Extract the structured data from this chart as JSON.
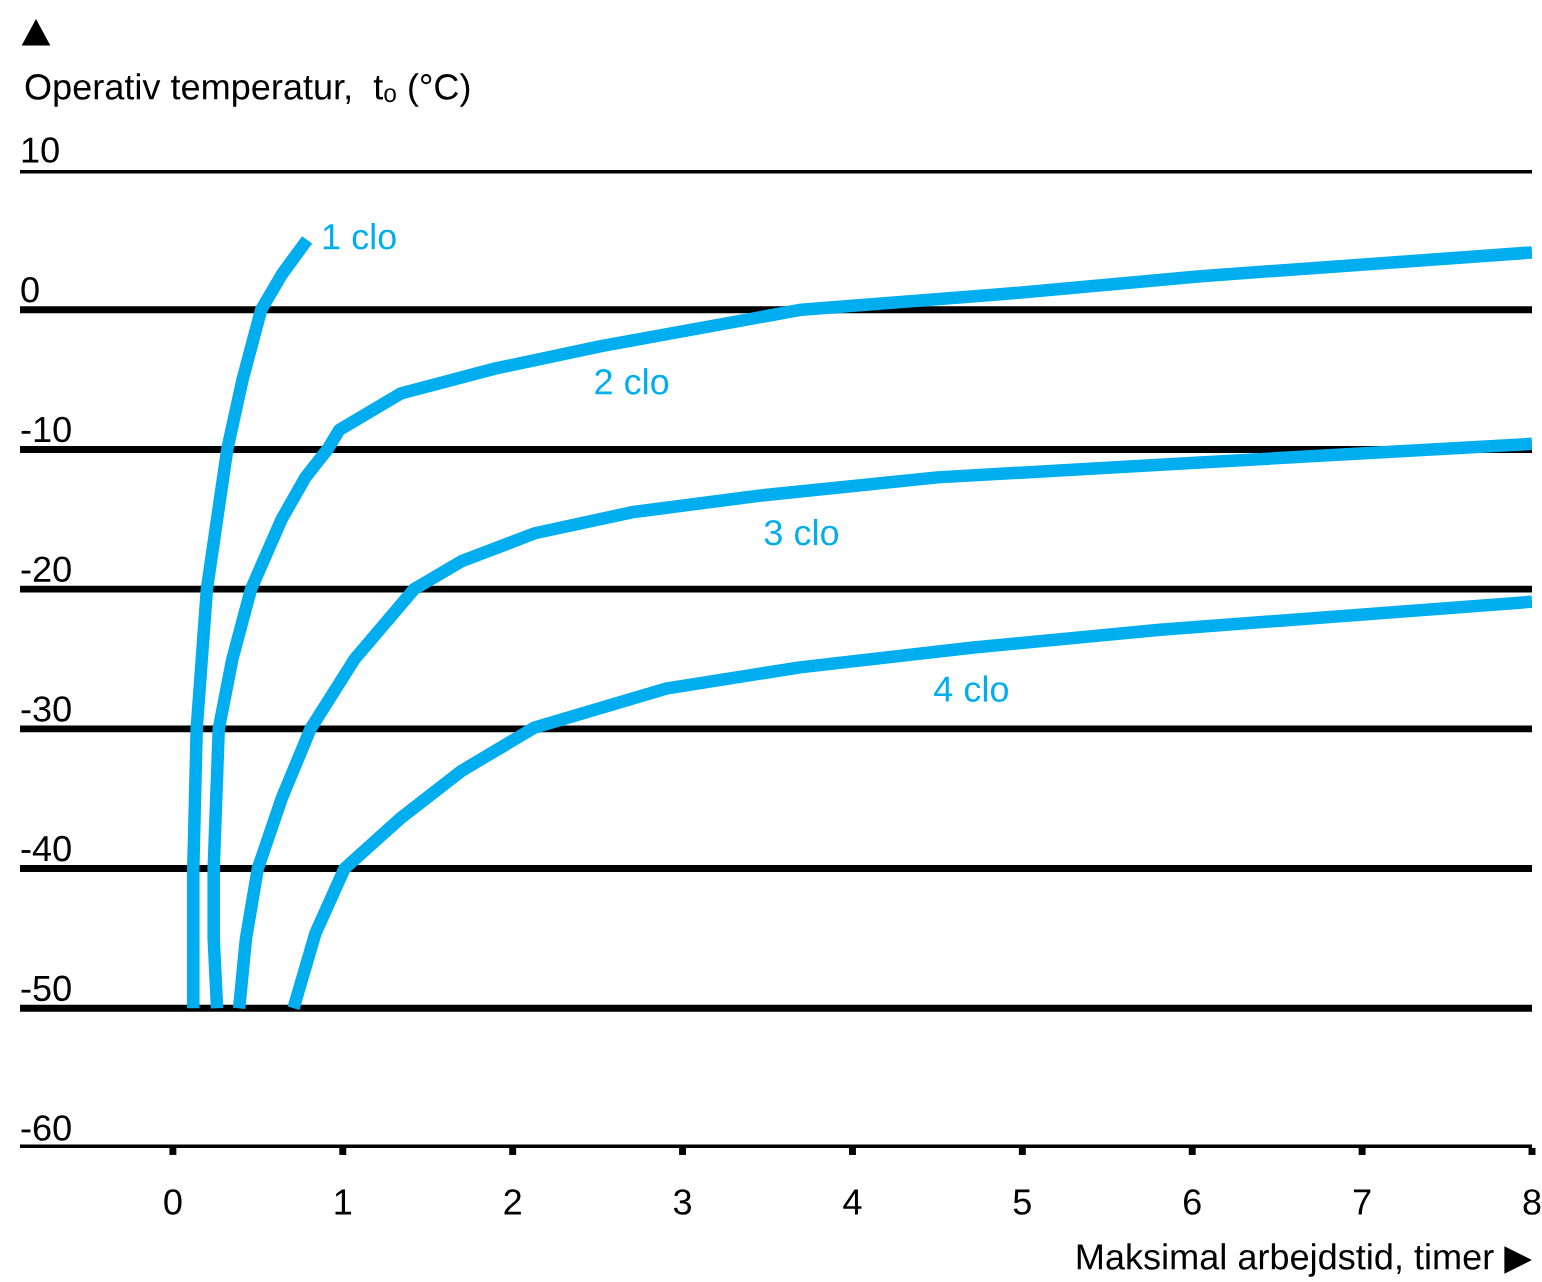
{
  "chart_data": {
    "type": "line",
    "xlabel": "Maksimal arbejdstid, timer ▶",
    "ylabel": "Operativ temperatur,  tₒ (°C)",
    "xlim": [
      -0.9,
      8
    ],
    "ylim": [
      -60,
      10
    ],
    "xticks": [
      0,
      1,
      2,
      3,
      4,
      5,
      6,
      7,
      8
    ],
    "yticks": [
      -60,
      -50,
      -40,
      -30,
      -20,
      -10,
      0,
      10
    ],
    "grid": "y",
    "legend": false,
    "marker": "none",
    "line_style": "solid",
    "series": [
      {
        "name": "1 clo",
        "color": "#00aeef",
        "x": [
          0.12,
          0.12,
          0.14,
          0.2,
          0.32,
          0.41,
          0.52,
          0.64,
          0.79
        ],
        "values": [
          -50,
          -40,
          -30,
          -20,
          -10,
          -5,
          0,
          2.5,
          5
        ]
      },
      {
        "name": "2 clo",
        "color": "#00aeef",
        "x": [
          0.26,
          0.24,
          0.24,
          0.27,
          0.35,
          0.46,
          0.64,
          0.78,
          0.91,
          0.98,
          1.34,
          1.9,
          2.52,
          3.7,
          4.87,
          6.05,
          8
        ],
        "values": [
          -50,
          -45,
          -40,
          -30,
          -25,
          -20,
          -15,
          -12,
          -10,
          -8.6,
          -6,
          -4.2,
          -2.6,
          0,
          1.1,
          2.4,
          4.1
        ]
      },
      {
        "name": "3 clo",
        "color": "#00aeef",
        "x": [
          0.39,
          0.43,
          0.5,
          0.64,
          0.81,
          1.07,
          1.42,
          1.7,
          2.13,
          2.7,
          3.46,
          4.5,
          5.81,
          8
        ],
        "values": [
          -50,
          -45,
          -40,
          -35,
          -30,
          -25,
          -20,
          -18,
          -16,
          -14.5,
          -13.3,
          -12,
          -11.1,
          -9.6
        ]
      },
      {
        "name": "4 clo",
        "color": "#00aeef",
        "x": [
          0.71,
          0.84,
          1.01,
          1.34,
          1.7,
          2.13,
          2.91,
          3.69,
          4.7,
          5.81,
          8
        ],
        "values": [
          -50,
          -44.6,
          -40,
          -36.4,
          -33,
          -29.9,
          -27.1,
          -25.6,
          -24.2,
          -22.9,
          -20.9
        ]
      }
    ]
  }
}
